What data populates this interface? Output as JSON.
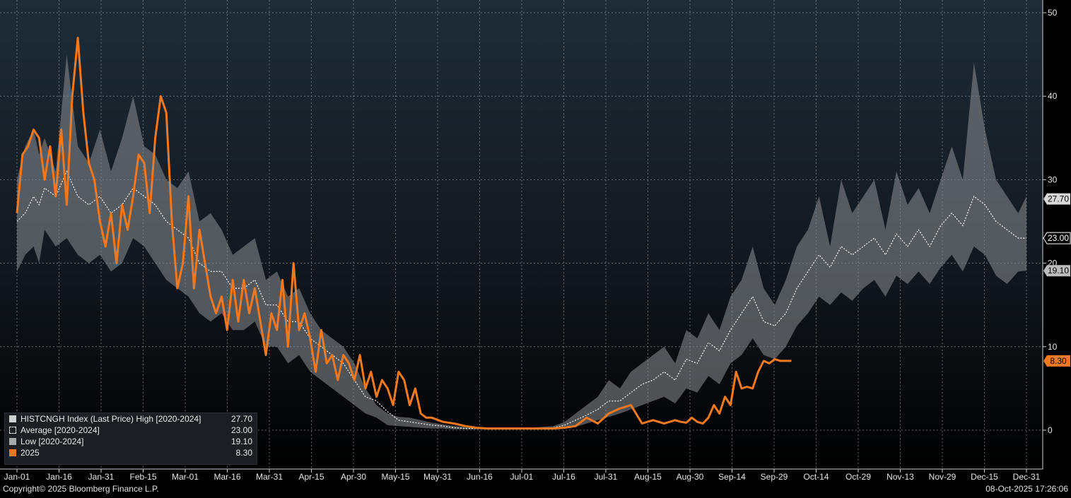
{
  "chart_data": {
    "type": "line",
    "x_ticks": [
      "Jan-01",
      "Jan-16",
      "Jan-31",
      "Feb-15",
      "Mar-01",
      "Mar-16",
      "Mar-31",
      "Apr-15",
      "Apr-30",
      "May-15",
      "May-31",
      "Jun-16",
      "Jul-01",
      "Jul-16",
      "Jul-31",
      "Aug-15",
      "Aug-30",
      "Sep-14",
      "Sep-29",
      "Oct-14",
      "Oct-29",
      "Nov-13",
      "Nov-29",
      "Dec-15",
      "Dec-31"
    ],
    "y_ticks": [
      0,
      10,
      20,
      30,
      40,
      50
    ],
    "ylim": [
      -4,
      51
    ],
    "grid": true,
    "legend_position": "bottom-left",
    "series": [
      {
        "name": "HISTCNGH Index (Last Price) High [2020-2024]",
        "last_value": "27.70",
        "color": "#c8c8c8",
        "x": [
          0,
          3,
          6,
          8,
          10,
          14,
          18,
          22,
          26,
          30,
          34,
          38,
          42,
          46,
          50,
          54,
          58,
          62,
          66,
          70,
          74,
          78,
          82,
          86,
          90,
          94,
          98,
          102,
          106,
          110,
          114,
          118,
          122,
          126,
          130,
          134,
          138,
          142,
          146,
          150,
          154,
          158,
          162,
          166,
          170,
          174,
          178,
          182,
          186,
          190,
          194,
          198,
          202,
          206,
          210,
          214,
          218,
          222,
          226,
          230,
          234,
          238,
          242,
          246,
          250,
          254,
          258,
          262,
          266,
          270,
          274,
          278,
          282,
          286,
          290,
          294,
          298,
          302,
          306,
          310,
          314,
          318,
          322,
          326,
          330,
          334,
          338,
          342,
          346,
          350,
          354,
          358,
          362,
          365
        ],
        "values": [
          30,
          34,
          36,
          33,
          35,
          31,
          45,
          34,
          32,
          36,
          31,
          35,
          40,
          34,
          33,
          30,
          29,
          31,
          25,
          26,
          24,
          21,
          22,
          23,
          18,
          19,
          16,
          17,
          14,
          12,
          11,
          10,
          8,
          5,
          3,
          2,
          1.6,
          1.5,
          1.2,
          0.9,
          0.7,
          0.5,
          0.4,
          0.3,
          0.3,
          0.3,
          0.3,
          0.3,
          0.3,
          0.4,
          0.5,
          1,
          2,
          3,
          4,
          6,
          5,
          7,
          8,
          9,
          10,
          8,
          12,
          11,
          14,
          12,
          16,
          18,
          22,
          17,
          15,
          18,
          22,
          24,
          28,
          22,
          30,
          26,
          28,
          30,
          24,
          31,
          27,
          29,
          26,
          30,
          34,
          30,
          44,
          36,
          30,
          28,
          26,
          28
        ]
      },
      {
        "name": "Average  [2020-2024]",
        "last_value": "23.00",
        "color": "#ffffff",
        "x": [
          0,
          3,
          6,
          8,
          10,
          14,
          18,
          22,
          26,
          30,
          34,
          38,
          42,
          46,
          50,
          54,
          58,
          62,
          66,
          70,
          74,
          78,
          82,
          86,
          90,
          94,
          98,
          102,
          106,
          110,
          114,
          118,
          122,
          126,
          130,
          134,
          138,
          142,
          146,
          150,
          154,
          158,
          162,
          166,
          170,
          174,
          178,
          182,
          186,
          190,
          194,
          198,
          202,
          206,
          210,
          214,
          218,
          222,
          226,
          230,
          234,
          238,
          242,
          246,
          250,
          254,
          258,
          262,
          266,
          270,
          274,
          278,
          282,
          286,
          290,
          294,
          298,
          302,
          306,
          310,
          314,
          318,
          322,
          326,
          330,
          334,
          338,
          342,
          346,
          350,
          354,
          358,
          362,
          365
        ],
        "values": [
          25,
          26,
          28,
          27,
          29,
          28,
          31,
          28,
          27,
          28,
          26,
          27,
          29,
          28,
          27,
          25,
          24,
          23,
          20,
          19,
          19,
          17,
          17,
          18,
          15,
          15,
          13,
          13,
          11,
          10,
          9,
          8,
          6,
          4,
          3.5,
          2.2,
          1.2,
          1.0,
          0.8,
          0.6,
          0.5,
          0.3,
          0.2,
          0.2,
          0.2,
          0.2,
          0.2,
          0.2,
          0.2,
          0.2,
          0.3,
          0.6,
          1.2,
          1.8,
          2.5,
          3.5,
          3.5,
          4.5,
          5.5,
          6.0,
          7.0,
          6.0,
          8.5,
          8.0,
          10.5,
          9.5,
          12.0,
          14.0,
          16.0,
          13.0,
          12.5,
          14.0,
          17.0,
          19.0,
          21.0,
          19.5,
          22.0,
          21.0,
          22.0,
          23.0,
          21.0,
          23.5,
          22.0,
          24.0,
          22.0,
          24.5,
          26.0,
          24.5,
          28.0,
          27.0,
          25.0,
          24.0,
          23.0,
          23.0
        ]
      },
      {
        "name": "Low  [2020-2024]",
        "last_value": "19.10",
        "color": "#9a9a9a",
        "x": [
          0,
          3,
          6,
          8,
          10,
          14,
          18,
          22,
          26,
          30,
          34,
          38,
          42,
          46,
          50,
          54,
          58,
          62,
          66,
          70,
          74,
          78,
          82,
          86,
          90,
          94,
          98,
          102,
          106,
          110,
          114,
          118,
          122,
          126,
          130,
          134,
          138,
          142,
          146,
          150,
          154,
          158,
          162,
          166,
          170,
          174,
          178,
          182,
          186,
          190,
          194,
          198,
          202,
          206,
          210,
          214,
          218,
          222,
          226,
          230,
          234,
          238,
          242,
          246,
          250,
          254,
          258,
          262,
          266,
          270,
          274,
          278,
          282,
          286,
          290,
          294,
          298,
          302,
          306,
          310,
          314,
          318,
          322,
          326,
          330,
          334,
          338,
          342,
          346,
          350,
          354,
          358,
          362,
          365
        ],
        "values": [
          19,
          21,
          22,
          20,
          24,
          22,
          23,
          21,
          20,
          21,
          19,
          20,
          23,
          22,
          20,
          18,
          17,
          16,
          14,
          13,
          14,
          12,
          12,
          13,
          10,
          10,
          8,
          9,
          7,
          6,
          5,
          4,
          3,
          2,
          1.5,
          0.6,
          0.5,
          0.4,
          0.3,
          0.2,
          0.2,
          0.1,
          0.1,
          0.1,
          0.1,
          0.1,
          0.1,
          0.1,
          0.1,
          0.1,
          0.1,
          0.2,
          0.4,
          0.8,
          1.2,
          1.6,
          2.0,
          2.5,
          3.0,
          3.5,
          4.0,
          3.2,
          5.0,
          4.5,
          6.5,
          5.5,
          8.0,
          9.0,
          11.0,
          9.0,
          8.5,
          10.0,
          12.5,
          14.0,
          16.0,
          15.0,
          16.5,
          15.5,
          17.0,
          18.0,
          16.0,
          18.5,
          17.5,
          19.0,
          17.5,
          19.5,
          21.0,
          19.0,
          22.0,
          21.0,
          18.5,
          17.5,
          19.0,
          19.1
        ]
      },
      {
        "name": "2025",
        "last_value": "8.30",
        "color": "#f07820",
        "x": [
          0,
          2,
          4,
          6,
          8,
          10,
          12,
          14,
          16,
          18,
          20,
          22,
          24,
          26,
          28,
          30,
          32,
          34,
          36,
          38,
          40,
          42,
          44,
          46,
          48,
          50,
          52,
          54,
          56,
          58,
          60,
          62,
          64,
          66,
          68,
          70,
          72,
          74,
          76,
          78,
          80,
          82,
          84,
          86,
          88,
          90,
          92,
          94,
          96,
          98,
          100,
          102,
          104,
          106,
          108,
          110,
          112,
          114,
          116,
          118,
          120,
          122,
          124,
          126,
          128,
          130,
          132,
          134,
          136,
          138,
          140,
          142,
          144,
          146,
          148,
          150,
          154,
          158,
          162,
          166,
          170,
          174,
          178,
          182,
          186,
          190,
          194,
          198,
          202,
          206,
          210,
          214,
          218,
          222,
          226,
          230,
          232,
          234,
          236,
          238,
          240,
          242,
          244,
          246,
          248,
          250,
          252,
          254,
          256,
          258,
          260,
          262,
          264,
          266,
          268,
          270,
          272,
          274,
          276,
          278,
          280
        ],
        "values": [
          26,
          33,
          34,
          36,
          35,
          30,
          34,
          28,
          36,
          27,
          40,
          47,
          38,
          32,
          30,
          25,
          22,
          26,
          20,
          27,
          24,
          28,
          33,
          32,
          26,
          35,
          40,
          38,
          25,
          17,
          20,
          28,
          17,
          24,
          20,
          16,
          14,
          16,
          12,
          18,
          13,
          18,
          14,
          17,
          13,
          9,
          14,
          12,
          18,
          10,
          20,
          12,
          14,
          11,
          7,
          12,
          8,
          9,
          6,
          9,
          8,
          6,
          9,
          5,
          7,
          4,
          6,
          5,
          3,
          7,
          6,
          3,
          5,
          2,
          1.5,
          1.5,
          1,
          0.8,
          0.5,
          0.3,
          0.2,
          0.2,
          0.2,
          0.2,
          0.2,
          0.2,
          0.2,
          0.3,
          0.5,
          1.5,
          0.8,
          2.0,
          2.6,
          3.0,
          0.8,
          1.2,
          1.0,
          0.8,
          1.0,
          1.2,
          1.0,
          0.9,
          1.5,
          1.0,
          0.8,
          1.5,
          3.0,
          2.0,
          4.0,
          3.0,
          7.0,
          5.0,
          5.2,
          5.0,
          7.0,
          8.3,
          8.0,
          8.5,
          8.3,
          8.3,
          8.3
        ]
      }
    ]
  },
  "footer": {
    "copyright": "Copyright© 2025 Bloomberg Finance L.P.",
    "timestamp": "08-Oct-2025 17:26:06"
  }
}
